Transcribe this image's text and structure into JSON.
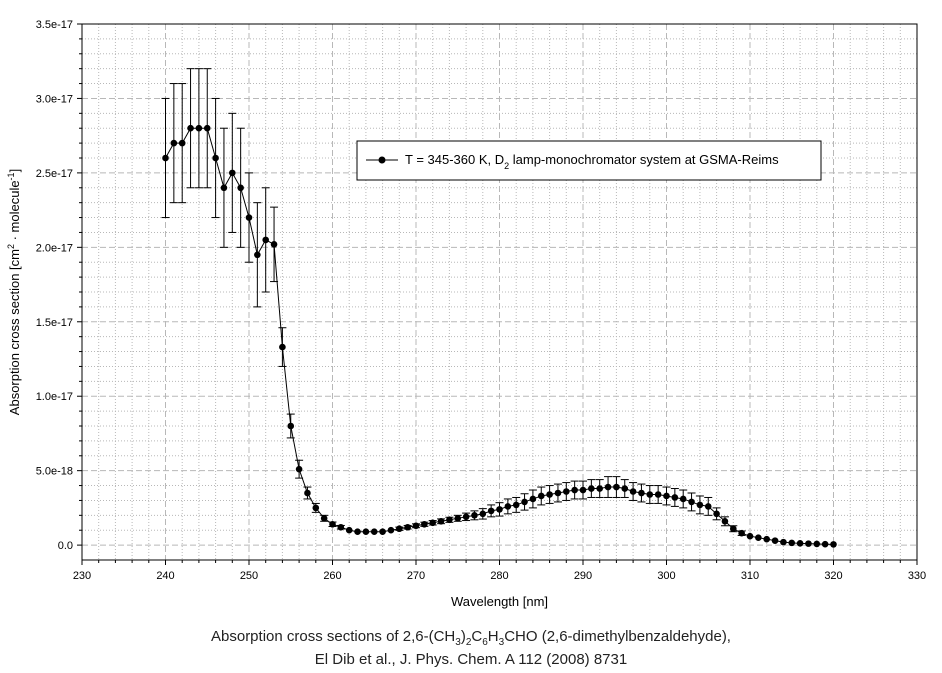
{
  "chart_data": {
    "type": "scatter",
    "xlabel": "Wavelength [nm]",
    "ylabel_parts": {
      "base": "Absorption cross section [cm",
      "sup1": "2",
      "mid": " · molecule",
      "sup2": "-1",
      "end": "]"
    },
    "xlim": [
      230,
      330
    ],
    "ylim": [
      -1e-18,
      3.5e-17
    ],
    "x_ticks": [
      230,
      240,
      250,
      260,
      270,
      280,
      290,
      300,
      310,
      320,
      330
    ],
    "y_ticks": [
      0,
      5e-18,
      1e-17,
      1.5e-17,
      2e-17,
      2.5e-17,
      3e-17,
      3.5e-17
    ],
    "y_tick_labels": [
      "0.0",
      "5.0e-18",
      "1.0e-17",
      "1.5e-17",
      "2.0e-17",
      "2.5e-17",
      "3.0e-17",
      "3.5e-17"
    ],
    "grid": true,
    "legend_position": "top-right",
    "series": [
      {
        "legend_parts": {
          "pre": "T = 345-360 K, D",
          "sub": "2",
          "post": " lamp-monochromator system at GSMA-Reims"
        },
        "x": [
          240,
          241,
          242,
          243,
          244,
          245,
          246,
          247,
          248,
          249,
          250,
          251,
          252,
          253,
          254,
          255,
          256,
          257,
          258,
          259,
          260,
          261,
          262,
          263,
          264,
          265,
          266,
          267,
          268,
          269,
          270,
          271,
          272,
          273,
          274,
          275,
          276,
          277,
          278,
          279,
          280,
          281,
          282,
          283,
          284,
          285,
          286,
          287,
          288,
          289,
          290,
          291,
          292,
          293,
          294,
          295,
          296,
          297,
          298,
          299,
          300,
          301,
          302,
          303,
          304,
          305,
          306,
          307,
          308,
          309,
          310,
          311,
          312,
          313,
          314,
          315,
          316,
          317,
          318,
          319,
          320
        ],
        "y": [
          2.6e-17,
          2.7e-17,
          2.7e-17,
          2.8e-17,
          2.8e-17,
          2.8e-17,
          2.6e-17,
          2.4e-17,
          2.5e-17,
          2.4e-17,
          2.2e-17,
          1.95e-17,
          2.05e-17,
          2.02e-17,
          1.33e-17,
          8e-18,
          5.1e-18,
          3.5e-18,
          2.5e-18,
          1.8e-18,
          1.4e-18,
          1.2e-18,
          1e-18,
          9e-19,
          9e-19,
          9e-19,
          9e-19,
          1e-18,
          1.1e-18,
          1.2e-18,
          1.3e-18,
          1.4e-18,
          1.5e-18,
          1.6e-18,
          1.7e-18,
          1.8e-18,
          1.9e-18,
          2e-18,
          2.1e-18,
          2.3e-18,
          2.4e-18,
          2.6e-18,
          2.7e-18,
          2.9e-18,
          3.1e-18,
          3.3e-18,
          3.4e-18,
          3.5e-18,
          3.6e-18,
          3.7e-18,
          3.7e-18,
          3.8e-18,
          3.8e-18,
          3.9e-18,
          3.9e-18,
          3.8e-18,
          3.6e-18,
          3.5e-18,
          3.4e-18,
          3.4e-18,
          3.3e-18,
          3.2e-18,
          3.1e-18,
          2.9e-18,
          2.7e-18,
          2.6e-18,
          2.1e-18,
          1.6e-18,
          1.1e-18,
          8e-19,
          6e-19,
          5e-19,
          4e-19,
          3e-19,
          2e-19,
          1.5e-19,
          1.2e-19,
          1e-19,
          8e-20,
          6e-20,
          5e-20
        ],
        "yerr": [
          4e-18,
          4e-18,
          4e-18,
          4e-18,
          4e-18,
          4e-18,
          4e-18,
          4e-18,
          4e-18,
          4e-18,
          3e-18,
          3.5e-18,
          3.5e-18,
          2.5e-18,
          1.3e-18,
          8e-19,
          6e-19,
          4e-19,
          3e-19,
          2e-19,
          1.5e-19,
          1.2e-19,
          1e-19,
          1e-19,
          1e-19,
          1e-19,
          1e-19,
          1e-19,
          1.1e-19,
          1.2e-19,
          1.3e-19,
          1.4e-19,
          1.5e-19,
          1.6e-19,
          1.7e-19,
          2e-19,
          2.5e-19,
          3e-19,
          3.5e-19,
          4e-19,
          4.5e-19,
          5e-19,
          5e-19,
          5.5e-19,
          6e-19,
          6e-19,
          6e-19,
          6e-19,
          6e-19,
          6e-19,
          6e-19,
          6e-19,
          6e-19,
          7e-19,
          7e-19,
          6e-19,
          6e-19,
          6e-19,
          6e-19,
          6e-19,
          6e-19,
          6e-19,
          6e-19,
          6e-19,
          6e-19,
          6e-19,
          4e-19,
          3e-19,
          2e-19,
          1.5e-19,
          1e-19,
          1e-19,
          8e-20,
          6e-20,
          5e-20,
          4e-20,
          3e-20,
          3e-20,
          2e-20,
          2e-20,
          2e-20
        ]
      }
    ]
  },
  "caption": {
    "line1_parts": [
      "Absorption cross sections of 2,6-(CH",
      "3",
      ")",
      "2",
      "C",
      "6",
      "H",
      "3",
      "CHO (2,6-dimethylbenzaldehyde),"
    ],
    "line2": "El Dib et al., J. Phys. Chem. A 112 (2008) 8731"
  },
  "colors": {
    "marker": "#000000",
    "grid": "#b8b8b8",
    "axis": "#000000"
  }
}
